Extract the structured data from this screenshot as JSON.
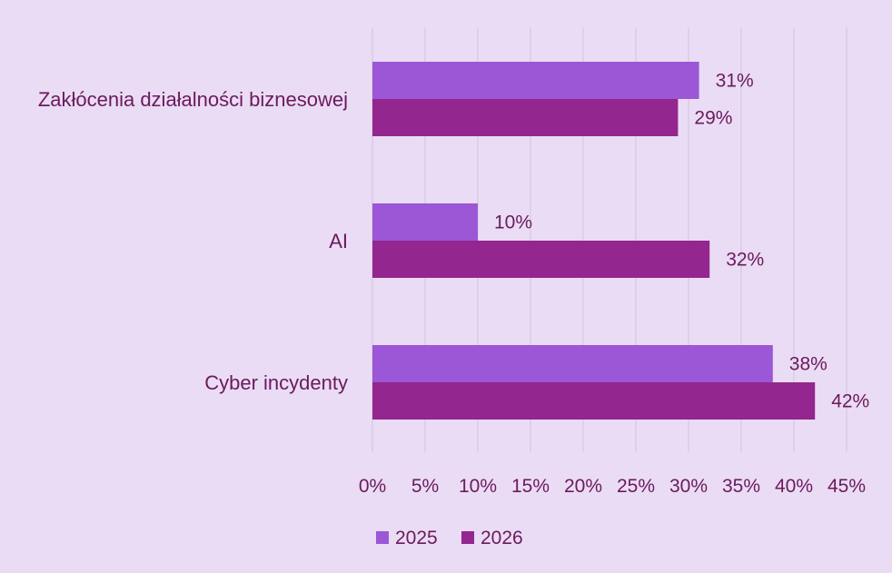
{
  "chart_data": {
    "type": "bar",
    "orientation": "horizontal",
    "categories": [
      "Zakłócenia działalności biznesowej",
      "AI",
      "Cyber incydenty"
    ],
    "series": [
      {
        "name": "2025",
        "values": [
          31,
          10,
          38
        ],
        "labels": [
          "31%",
          "10%",
          "38%"
        ],
        "color": "#9B57D6"
      },
      {
        "name": "2026",
        "values": [
          29,
          32,
          42
        ],
        "labels": [
          "29%",
          "32%",
          "42%"
        ],
        "color": "#93268F"
      }
    ],
    "xticks": [
      0,
      5,
      10,
      15,
      20,
      25,
      30,
      35,
      40,
      45
    ],
    "xtick_labels": [
      "0%",
      "5%",
      "10%",
      "15%",
      "20%",
      "25%",
      "30%",
      "35%",
      "40%",
      "45%"
    ],
    "xlim": [
      0,
      45
    ],
    "title": "",
    "xlabel": "",
    "ylabel": "",
    "grid": true,
    "legend_position": "bottom-center"
  },
  "colors": {
    "background": "#EADCF4",
    "text": "#6B1A5E",
    "grid": "#D6C8DF"
  }
}
